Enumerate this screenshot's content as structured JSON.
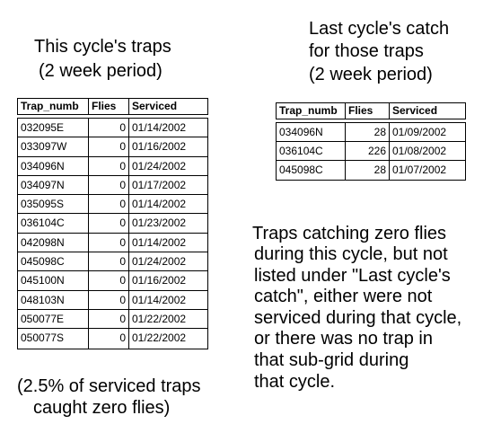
{
  "this_cycle": {
    "title_line1": "This cycle's traps",
    "title_line2": "(2 week period)",
    "headers": [
      "Trap_numb",
      "Flies",
      "Serviced"
    ],
    "rows": [
      [
        "032095E",
        "0",
        "01/14/2002"
      ],
      [
        "033097W",
        "0",
        "01/16/2002"
      ],
      [
        "034096N",
        "0",
        "01/24/2002"
      ],
      [
        "034097N",
        "0",
        "01/17/2002"
      ],
      [
        "035095S",
        "0",
        "01/14/2002"
      ],
      [
        "036104C",
        "0",
        "01/23/2002"
      ],
      [
        "042098N",
        "0",
        "01/14/2002"
      ],
      [
        "045098C",
        "0",
        "01/24/2002"
      ],
      [
        "045100N",
        "0",
        "01/16/2002"
      ],
      [
        "048103N",
        "0",
        "01/14/2002"
      ],
      [
        "050077E",
        "0",
        "01/22/2002"
      ],
      [
        "050077S",
        "0",
        "01/22/2002"
      ]
    ],
    "note_line1": "(2.5% of serviced traps",
    "note_line2": "caught zero flies)"
  },
  "last_cycle": {
    "title_line1": "Last cycle's catch",
    "title_line2": "for those traps",
    "title_line3": "(2 week period)",
    "headers": [
      "Trap_numb",
      "Flies",
      "Serviced"
    ],
    "rows": [
      [
        "034096N",
        "28",
        "01/09/2002"
      ],
      [
        "036104C",
        "226",
        "01/08/2002"
      ],
      [
        "045098C",
        "28",
        "01/07/2002"
      ]
    ]
  },
  "explanation": {
    "line1": "Traps catching zero flies",
    "line2": "during this cycle, but not",
    "line3": "listed under \"Last cycle's",
    "line4": "catch\", either were not",
    "line5": "serviced during that cycle,",
    "line6": "or there was no trap in",
    "line7": "that sub-grid during",
    "line8": "that cycle."
  }
}
